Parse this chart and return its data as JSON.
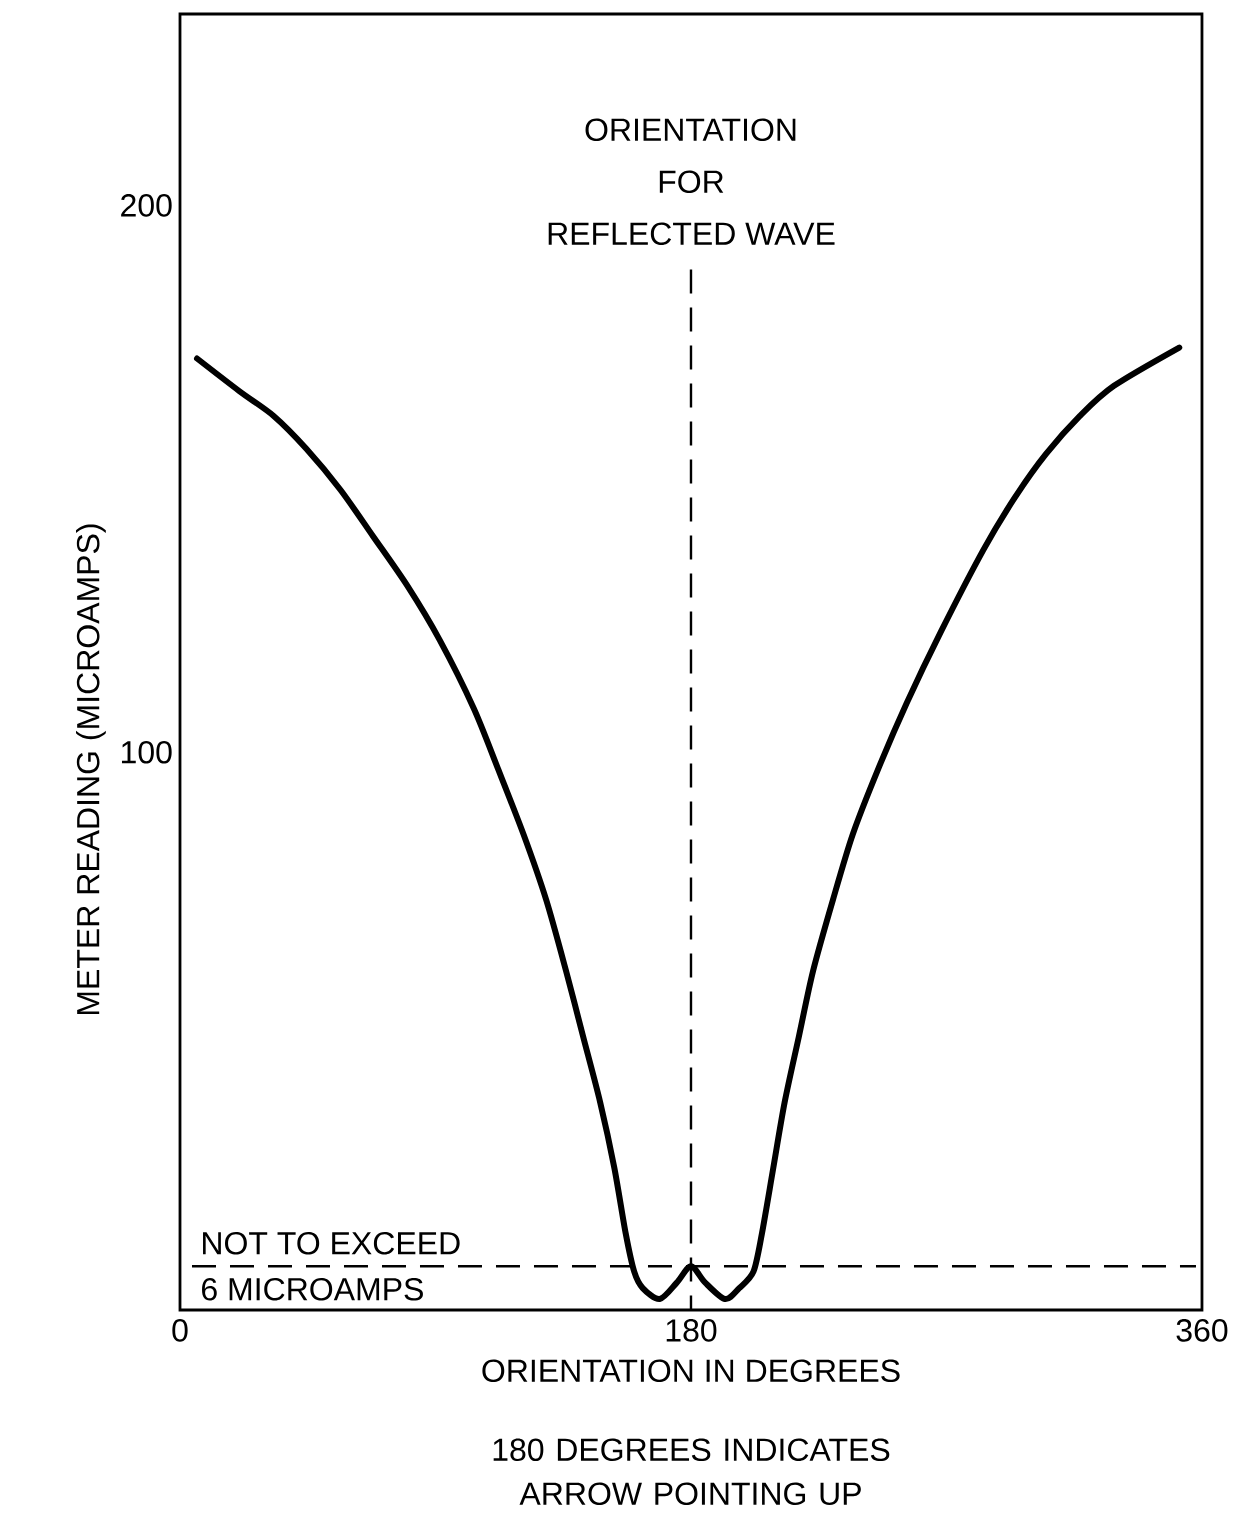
{
  "chart_data": {
    "type": "line",
    "x": [
      6,
      21,
      33,
      44.5,
      56.5,
      68,
      80,
      91.5,
      103.5,
      112,
      121,
      129,
      136,
      142,
      148,
      153,
      157,
      160,
      163,
      169,
      175,
      180,
      185,
      192,
      197,
      202,
      205,
      209,
      213,
      218,
      223,
      230,
      237,
      246,
      256,
      268,
      283,
      294,
      305,
      317,
      329,
      352
    ],
    "values": [
      172,
      166,
      161.5,
      155.5,
      148,
      139.5,
      130.5,
      120.5,
      108,
      97,
      85,
      73,
      60,
      48,
      36,
      24,
      12,
      5,
      2,
      0,
      3,
      6,
      3,
      0,
      2,
      5,
      12,
      24,
      36,
      48,
      60,
      73,
      85,
      97,
      109,
      122,
      137,
      146.5,
      154.5,
      161.5,
      167,
      174
    ],
    "color": "#000000",
    "xlabel": "ORIENTATION IN DEGREES",
    "ylabel": "METER READING (MICROAMPS)",
    "xlim": [
      0,
      360
    ],
    "ylim": [
      -2,
      235
    ],
    "xticks": [
      0,
      180,
      360
    ],
    "yticks": [
      100,
      200
    ],
    "ref_lines": [
      {
        "axis": "x",
        "value": 180,
        "label": "ORIENTATION FOR REFLECTED WAVE",
        "line_style": "dashed"
      },
      {
        "axis": "y",
        "value": 6,
        "label": "NOT TO EXCEED 6 MICROAMPS",
        "line_style": "dashed"
      }
    ],
    "annotations": [
      "180 DEGREES INDICATES ARROW POINTING UP"
    ]
  }
}
